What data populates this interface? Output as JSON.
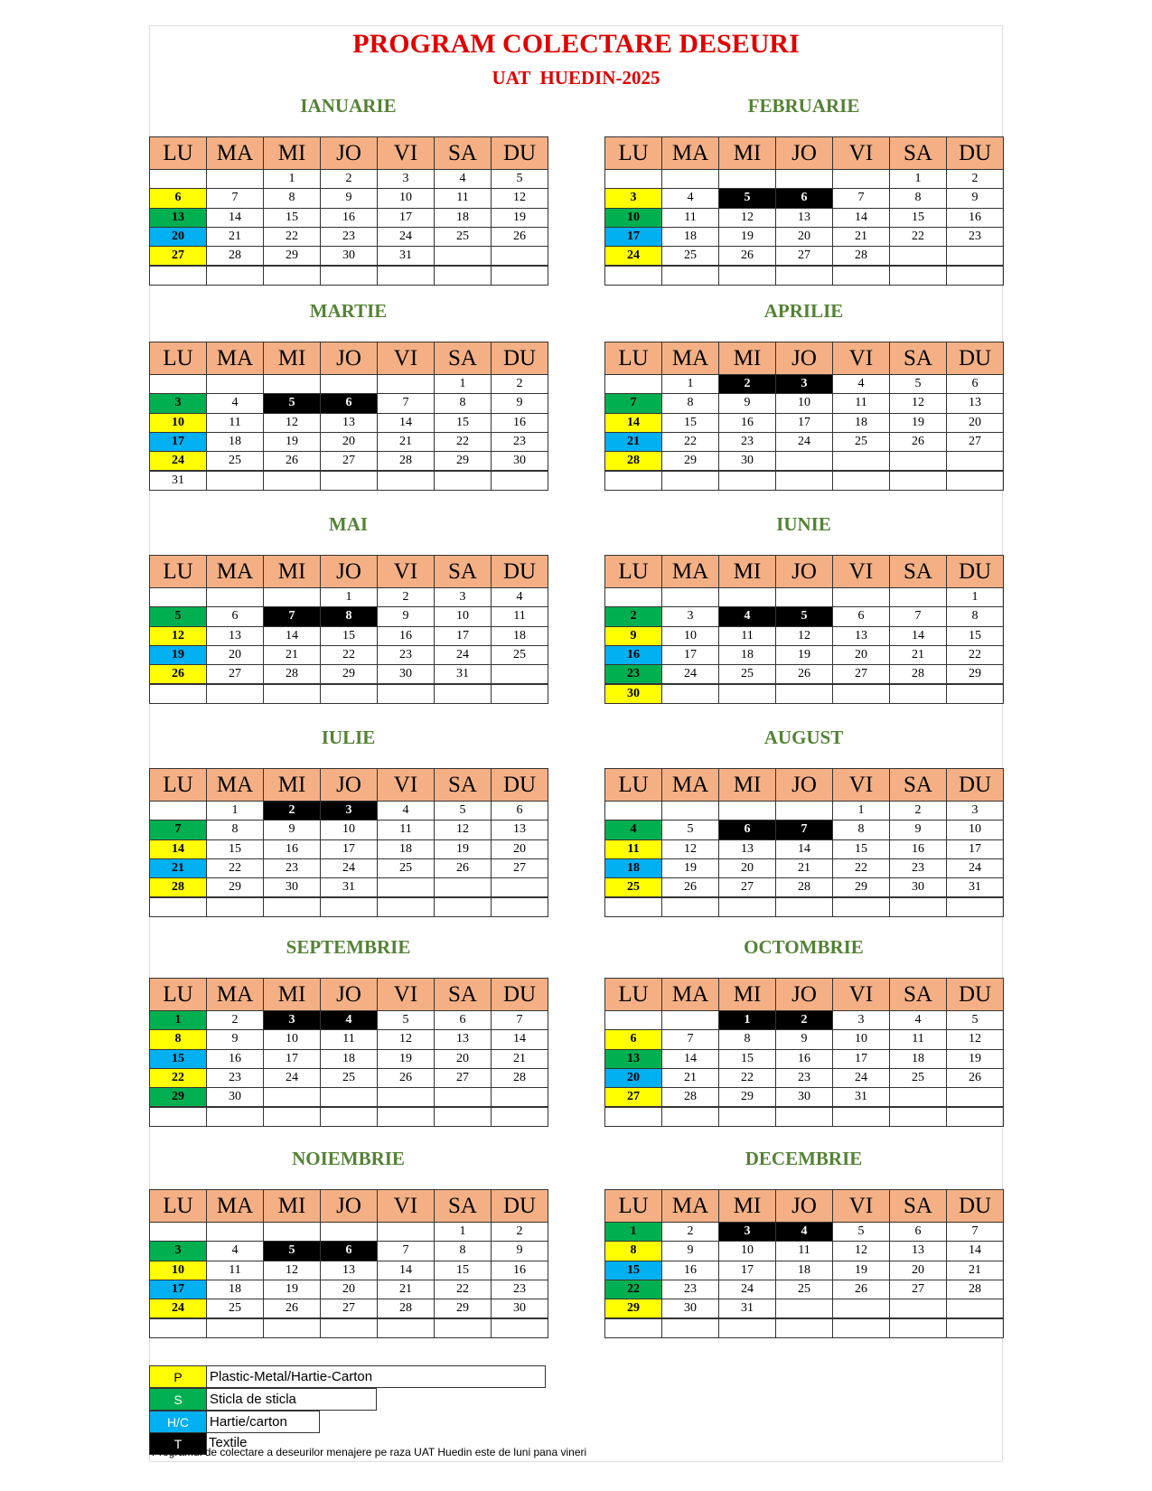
{
  "header": {
    "title": "PROGRAM COLECTARE DESEURI",
    "subtitle": "UAT  HUEDIN-2025"
  },
  "weekdays": [
    "LU",
    "MA",
    "MI",
    "JO",
    "VI",
    "SA",
    "DU"
  ],
  "legend": [
    {
      "code": "P",
      "label": "Plastic-Metal/Hartie-Carton",
      "color": "#ffff00",
      "text_color": "#000000",
      "day_color": "#000000"
    },
    {
      "code": "S",
      "label": "Sticla de sticla",
      "color": "#00b050",
      "text_color": "#ffffff",
      "day_color": "#000000"
    },
    {
      "code": "H/C",
      "label": "Hartie/carton",
      "color": "#00b0f0",
      "text_color": "#ffffff",
      "day_color": "#000000"
    },
    {
      "code": "T",
      "label": "Textile",
      "color": "#000000",
      "text_color": "#ffffff",
      "day_color": "#ffffff"
    }
  ],
  "months": [
    {
      "name": "IANUARIE",
      "weeks": [
        [
          null,
          null,
          1,
          2,
          3,
          4,
          5
        ],
        [
          [
            6,
            "P"
          ],
          7,
          8,
          9,
          10,
          11,
          12
        ],
        [
          [
            13,
            "S"
          ],
          14,
          15,
          16,
          17,
          18,
          19
        ],
        [
          [
            20,
            "H/C"
          ],
          21,
          22,
          23,
          24,
          25,
          26
        ],
        [
          [
            27,
            "P"
          ],
          28,
          29,
          30,
          31,
          null,
          null
        ]
      ]
    },
    {
      "name": "FEBRUARIE",
      "weeks": [
        [
          null,
          null,
          null,
          null,
          null,
          1,
          2
        ],
        [
          [
            3,
            "P"
          ],
          4,
          [
            5,
            "T"
          ],
          [
            6,
            "T"
          ],
          7,
          8,
          9
        ],
        [
          [
            10,
            "S"
          ],
          11,
          12,
          13,
          14,
          15,
          16
        ],
        [
          [
            17,
            "H/C"
          ],
          18,
          19,
          20,
          21,
          22,
          23
        ],
        [
          [
            24,
            "P"
          ],
          25,
          26,
          27,
          28,
          null,
          null
        ]
      ]
    },
    {
      "name": "MARTIE",
      "weeks": [
        [
          null,
          null,
          null,
          null,
          null,
          1,
          2
        ],
        [
          [
            3,
            "S"
          ],
          4,
          [
            5,
            "T"
          ],
          [
            6,
            "T"
          ],
          7,
          8,
          9
        ],
        [
          [
            10,
            "P"
          ],
          11,
          12,
          13,
          14,
          15,
          16
        ],
        [
          [
            17,
            "H/C"
          ],
          18,
          19,
          20,
          21,
          22,
          23
        ],
        [
          [
            24,
            "P"
          ],
          25,
          26,
          27,
          28,
          29,
          30
        ],
        [
          31,
          null,
          null,
          null,
          null,
          null,
          null
        ]
      ]
    },
    {
      "name": "APRILIE",
      "weeks": [
        [
          null,
          1,
          [
            2,
            "T"
          ],
          [
            3,
            "T"
          ],
          4,
          5,
          6
        ],
        [
          [
            7,
            "S"
          ],
          8,
          9,
          10,
          11,
          12,
          13
        ],
        [
          [
            14,
            "P"
          ],
          15,
          16,
          17,
          18,
          19,
          20
        ],
        [
          [
            21,
            "H/C"
          ],
          22,
          23,
          24,
          25,
          26,
          27
        ],
        [
          [
            28,
            "P"
          ],
          29,
          30,
          null,
          null,
          null,
          null
        ]
      ]
    },
    {
      "name": "MAI",
      "weeks": [
        [
          null,
          null,
          null,
          1,
          2,
          3,
          4
        ],
        [
          [
            5,
            "S"
          ],
          6,
          [
            7,
            "T"
          ],
          [
            8,
            "T"
          ],
          9,
          10,
          11
        ],
        [
          [
            12,
            "P"
          ],
          13,
          14,
          15,
          16,
          17,
          18
        ],
        [
          [
            19,
            "H/C"
          ],
          20,
          21,
          22,
          23,
          24,
          25
        ],
        [
          [
            26,
            "P"
          ],
          27,
          28,
          29,
          30,
          31,
          null
        ]
      ]
    },
    {
      "name": "IUNIE",
      "weeks": [
        [
          null,
          null,
          null,
          null,
          null,
          null,
          1
        ],
        [
          [
            2,
            "S"
          ],
          3,
          [
            4,
            "T"
          ],
          [
            5,
            "T"
          ],
          6,
          7,
          8
        ],
        [
          [
            9,
            "P"
          ],
          10,
          11,
          12,
          13,
          14,
          15
        ],
        [
          [
            16,
            "H/C"
          ],
          17,
          18,
          19,
          20,
          21,
          22
        ],
        [
          [
            23,
            "S"
          ],
          24,
          25,
          26,
          27,
          28,
          29
        ],
        [
          [
            30,
            "P"
          ],
          null,
          null,
          null,
          null,
          null,
          null
        ]
      ]
    },
    {
      "name": "IULIE",
      "weeks": [
        [
          null,
          1,
          [
            2,
            "T"
          ],
          [
            3,
            "T"
          ],
          4,
          5,
          6
        ],
        [
          [
            7,
            "S"
          ],
          8,
          9,
          10,
          11,
          12,
          13
        ],
        [
          [
            14,
            "P"
          ],
          15,
          16,
          17,
          18,
          19,
          20
        ],
        [
          [
            21,
            "H/C"
          ],
          22,
          23,
          24,
          25,
          26,
          27
        ],
        [
          [
            28,
            "P"
          ],
          29,
          30,
          31,
          null,
          null,
          null
        ]
      ]
    },
    {
      "name": "AUGUST",
      "weeks": [
        [
          null,
          null,
          null,
          null,
          1,
          2,
          3
        ],
        [
          [
            4,
            "S"
          ],
          5,
          [
            6,
            "T"
          ],
          [
            7,
            "T"
          ],
          8,
          9,
          10
        ],
        [
          [
            11,
            "P"
          ],
          12,
          13,
          14,
          15,
          16,
          17
        ],
        [
          [
            18,
            "H/C"
          ],
          19,
          20,
          21,
          22,
          23,
          24
        ],
        [
          [
            25,
            "P"
          ],
          26,
          27,
          28,
          29,
          30,
          31
        ]
      ]
    },
    {
      "name": "SEPTEMBRIE",
      "weeks": [
        [
          [
            1,
            "S"
          ],
          2,
          [
            3,
            "T"
          ],
          [
            4,
            "T"
          ],
          5,
          6,
          7
        ],
        [
          [
            8,
            "P"
          ],
          9,
          10,
          11,
          12,
          13,
          14
        ],
        [
          [
            15,
            "H/C"
          ],
          16,
          17,
          18,
          19,
          20,
          21
        ],
        [
          [
            22,
            "P"
          ],
          23,
          24,
          25,
          26,
          27,
          28
        ],
        [
          [
            29,
            "S"
          ],
          30,
          null,
          null,
          null,
          null,
          null
        ]
      ]
    },
    {
      "name": "OCTOMBRIE",
      "weeks": [
        [
          null,
          null,
          [
            1,
            "T"
          ],
          [
            2,
            "T"
          ],
          3,
          4,
          5
        ],
        [
          [
            6,
            "P"
          ],
          7,
          8,
          9,
          10,
          11,
          12
        ],
        [
          [
            13,
            "S"
          ],
          14,
          15,
          16,
          17,
          18,
          19
        ],
        [
          [
            20,
            "H/C"
          ],
          21,
          22,
          23,
          24,
          25,
          26
        ],
        [
          [
            27,
            "P"
          ],
          28,
          29,
          30,
          31,
          null,
          null
        ]
      ]
    },
    {
      "name": "NOIEMBRIE",
      "weeks": [
        [
          null,
          null,
          null,
          null,
          null,
          1,
          2
        ],
        [
          [
            3,
            "S"
          ],
          4,
          [
            5,
            "T"
          ],
          [
            6,
            "T"
          ],
          7,
          8,
          9
        ],
        [
          [
            10,
            "P"
          ],
          11,
          12,
          13,
          14,
          15,
          16
        ],
        [
          [
            17,
            "H/C"
          ],
          18,
          19,
          20,
          21,
          22,
          23
        ],
        [
          [
            24,
            "P"
          ],
          25,
          26,
          27,
          28,
          29,
          30
        ]
      ]
    },
    {
      "name": "DECEMBRIE",
      "weeks": [
        [
          [
            1,
            "S"
          ],
          2,
          [
            3,
            "T"
          ],
          [
            4,
            "T"
          ],
          5,
          6,
          7
        ],
        [
          [
            8,
            "P"
          ],
          9,
          10,
          11,
          12,
          13,
          14
        ],
        [
          [
            15,
            "H/C"
          ],
          16,
          17,
          18,
          19,
          20,
          21
        ],
        [
          [
            22,
            "S"
          ],
          23,
          24,
          25,
          26,
          27,
          28
        ],
        [
          [
            29,
            "P"
          ],
          30,
          31,
          null,
          null,
          null,
          null
        ]
      ]
    }
  ],
  "note": "Programul de colectare a deseurilor menajere pe raza UAT Huedin este de luni pana vineri"
}
